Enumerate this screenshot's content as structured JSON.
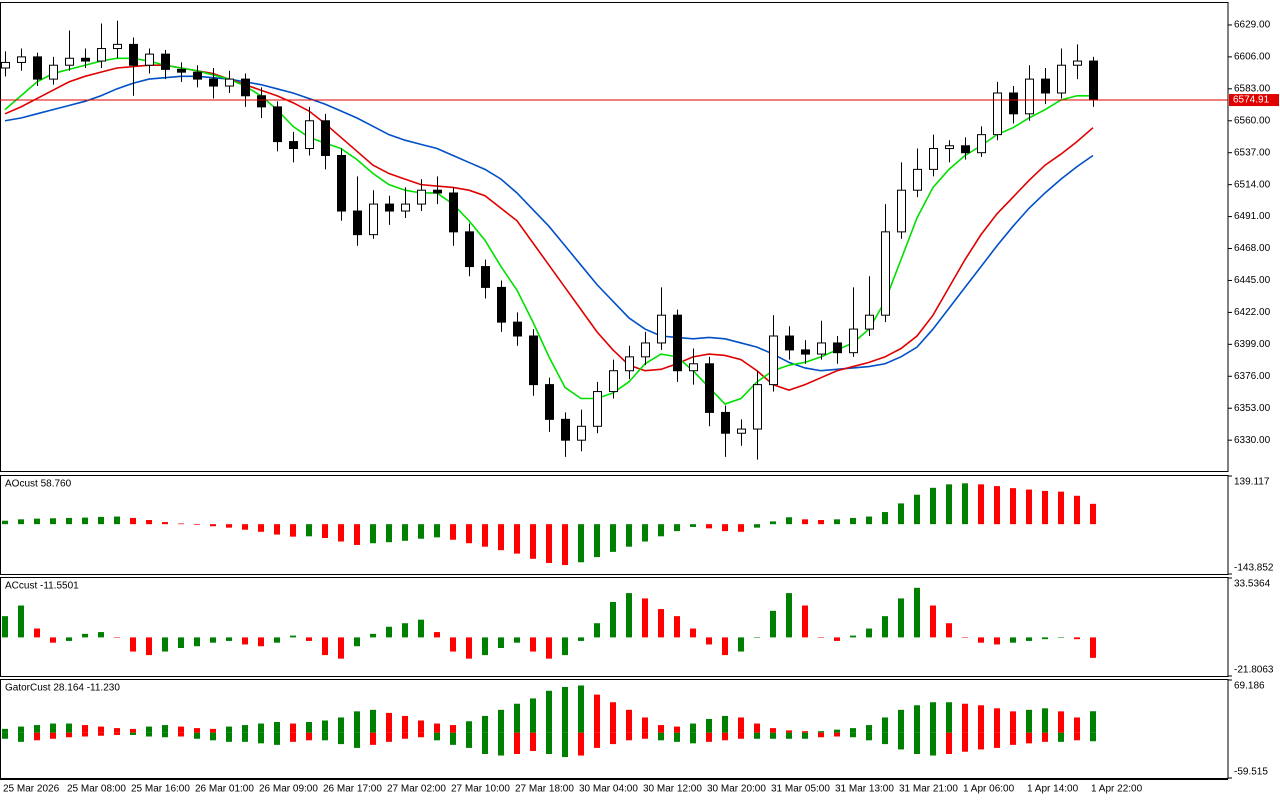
{
  "chart_data": [
    {
      "type": "candlestick",
      "categories": [
        "25 Mar 2026",
        null,
        null,
        null,
        "25 Mar 08:00",
        null,
        null,
        null,
        "25 Mar 16:00",
        null,
        null,
        null,
        "26 Mar 01:00",
        null,
        null,
        null,
        "26 Mar 09:00",
        null,
        null,
        null,
        "26 Mar 17:00",
        null,
        null,
        null,
        "27 Mar 02:00",
        null,
        null,
        null,
        "27 Mar 10:00",
        null,
        null,
        null,
        "27 Mar 18:00",
        null,
        null,
        null,
        "30 Mar 04:00",
        null,
        null,
        null,
        "30 Mar 12:00",
        null,
        null,
        null,
        "30 Mar 20:00",
        null,
        null,
        null,
        "31 Mar 05:00",
        null,
        null,
        null,
        "31 Mar 13:00",
        null,
        null,
        null,
        "31 Mar 21:00",
        null,
        null,
        null,
        "1 Apr 06:00",
        null,
        null,
        null,
        "1 Apr 14:00",
        null,
        null,
        null,
        "1 Apr 22:00"
      ],
      "candles": [
        [
          6598,
          6610,
          6592,
          6602
        ],
        [
          6602,
          6612,
          6596,
          6606
        ],
        [
          6606,
          6609,
          6585,
          6590
        ],
        [
          6590,
          6606,
          6586,
          6600
        ],
        [
          6600,
          6625,
          6596,
          6605
        ],
        [
          6605,
          6612,
          6598,
          6603
        ],
        [
          6603,
          6630,
          6598,
          6612
        ],
        [
          6612,
          6632,
          6605,
          6615
        ],
        [
          6615,
          6620,
          6578,
          6600
        ],
        [
          6600,
          6612,
          6594,
          6608
        ],
        [
          6608,
          6611,
          6590,
          6597
        ],
        [
          6597,
          6602,
          6588,
          6595
        ],
        [
          6595,
          6600,
          6584,
          6590
        ],
        [
          6590,
          6598,
          6576,
          6585
        ],
        [
          6585,
          6596,
          6580,
          6590
        ],
        [
          6590,
          6594,
          6570,
          6578
        ],
        [
          6578,
          6584,
          6562,
          6570
        ],
        [
          6570,
          6574,
          6538,
          6545
        ],
        [
          6545,
          6552,
          6530,
          6540
        ],
        [
          6540,
          6570,
          6535,
          6560
        ],
        [
          6560,
          6565,
          6525,
          6535
        ],
        [
          6535,
          6540,
          6488,
          6495
        ],
        [
          6495,
          6520,
          6470,
          6478
        ],
        [
          6478,
          6510,
          6475,
          6500
        ],
        [
          6500,
          6506,
          6485,
          6495
        ],
        [
          6495,
          6512,
          6490,
          6500
        ],
        [
          6500,
          6518,
          6495,
          6510
        ],
        [
          6510,
          6520,
          6500,
          6508
        ],
        [
          6508,
          6512,
          6470,
          6480
        ],
        [
          6480,
          6486,
          6448,
          6455
        ],
        [
          6455,
          6460,
          6432,
          6440
        ],
        [
          6440,
          6445,
          6408,
          6415
        ],
        [
          6415,
          6422,
          6398,
          6405
        ],
        [
          6405,
          6410,
          6362,
          6370
        ],
        [
          6370,
          6375,
          6336,
          6345
        ],
        [
          6345,
          6350,
          6318,
          6330
        ],
        [
          6330,
          6352,
          6322,
          6340
        ],
        [
          6340,
          6372,
          6335,
          6365
        ],
        [
          6365,
          6388,
          6360,
          6380
        ],
        [
          6380,
          6398,
          6374,
          6390
        ],
        [
          6390,
          6408,
          6384,
          6400
        ],
        [
          6400,
          6440,
          6395,
          6420
        ],
        [
          6420,
          6424,
          6372,
          6380
        ],
        [
          6380,
          6396,
          6370,
          6385
        ],
        [
          6385,
          6390,
          6340,
          6350
        ],
        [
          6350,
          6355,
          6318,
          6335
        ],
        [
          6335,
          6345,
          6326,
          6338
        ],
        [
          6338,
          6380,
          6316,
          6370
        ],
        [
          6370,
          6420,
          6365,
          6405
        ],
        [
          6405,
          6412,
          6388,
          6395
        ],
        [
          6395,
          6402,
          6385,
          6392
        ],
        [
          6392,
          6416,
          6388,
          6400
        ],
        [
          6400,
          6405,
          6385,
          6393
        ],
        [
          6393,
          6440,
          6390,
          6410
        ],
        [
          6410,
          6448,
          6405,
          6420
        ],
        [
          6420,
          6500,
          6415,
          6480
        ],
        [
          6480,
          6530,
          6475,
          6510
        ],
        [
          6510,
          6540,
          6505,
          6525
        ],
        [
          6525,
          6550,
          6520,
          6540
        ],
        [
          6540,
          6546,
          6530,
          6542
        ],
        [
          6542,
          6548,
          6532,
          6537
        ],
        [
          6537,
          6556,
          6534,
          6550
        ],
        [
          6550,
          6588,
          6546,
          6580
        ],
        [
          6580,
          6585,
          6558,
          6565
        ],
        [
          6565,
          6600,
          6560,
          6590
        ],
        [
          6590,
          6598,
          6572,
          6580
        ],
        [
          6580,
          6612,
          6576,
          6600
        ],
        [
          6600,
          6615,
          6590,
          6603
        ],
        [
          6603,
          6606,
          6570,
          6575
        ]
      ],
      "up_color": "#ffffff",
      "down_color": "#000000",
      "series": [
        {
          "color": "#0050c8",
          "values": [
            6560,
            6562,
            6565,
            6568,
            6571,
            6574,
            6578,
            6583,
            6587,
            6590,
            6591,
            6592,
            6592,
            6591,
            6590,
            6588,
            6586,
            6583,
            6580,
            6576,
            6572,
            6567,
            6562,
            6556,
            6550,
            6546,
            6543,
            6540,
            6535,
            6530,
            6525,
            6518,
            6508,
            6496,
            6484,
            6470,
            6456,
            6442,
            6430,
            6418,
            6410,
            6405,
            6404,
            6403,
            6404,
            6403,
            6400,
            6397,
            6392,
            6386,
            6382,
            6380,
            6381,
            6382,
            6383,
            6385,
            6390,
            6397,
            6410,
            6425,
            6440,
            6455,
            6470,
            6484,
            6497,
            6508,
            6518,
            6527,
            6535
          ]
        },
        {
          "color": "#e00000",
          "values": [
            6565,
            6570,
            6576,
            6582,
            6588,
            6592,
            6595,
            6598,
            6599,
            6600,
            6600,
            6598,
            6596,
            6594,
            6590,
            6586,
            6582,
            6578,
            6573,
            6567,
            6558,
            6548,
            6538,
            6528,
            6522,
            6518,
            6514,
            6513,
            6512,
            6510,
            6506,
            6497,
            6488,
            6472,
            6456,
            6440,
            6424,
            6408,
            6395,
            6384,
            6380,
            6381,
            6385,
            6390,
            6392,
            6391,
            6388,
            6380,
            6370,
            6366,
            6370,
            6375,
            6380,
            6383,
            6386,
            6390,
            6396,
            6405,
            6420,
            6440,
            6460,
            6478,
            6493,
            6505,
            6517,
            6528,
            6536,
            6545,
            6555
          ]
        },
        {
          "color": "#00e000",
          "values": [
            6568,
            6578,
            6588,
            6594,
            6597,
            6600,
            6603,
            6605,
            6605,
            6603,
            6600,
            6598,
            6596,
            6593,
            6590,
            6585,
            6578,
            6568,
            6556,
            6548,
            6544,
            6540,
            6532,
            6522,
            6514,
            6510,
            6508,
            6508,
            6500,
            6488,
            6474,
            6455,
            6438,
            6415,
            6390,
            6368,
            6360,
            6360,
            6364,
            6372,
            6385,
            6392,
            6390,
            6380,
            6368,
            6356,
            6360,
            6372,
            6380,
            6384,
            6386,
            6390,
            6395,
            6400,
            6410,
            6430,
            6460,
            6490,
            6512,
            6525,
            6535,
            6542,
            6550,
            6555,
            6562,
            6568,
            6575,
            6578,
            6578
          ]
        }
      ],
      "last_price": 6574.91,
      "price_line_color": "#e00000",
      "ylim": [
        6307.8,
        6644.8
      ],
      "yticks": [
        {
          "value": 6629,
          "label": "6629.00"
        },
        {
          "value": 6606,
          "label": "6606.00"
        },
        {
          "value": 6583,
          "label": "6583.00"
        },
        {
          "value": 6560,
          "label": "6560.00"
        },
        {
          "value": 6537,
          "label": "6537.00"
        },
        {
          "value": 6514,
          "label": "6514.00"
        },
        {
          "value": 6491,
          "label": "6491.00"
        },
        {
          "value": 6468,
          "label": "6468.00"
        },
        {
          "value": 6445,
          "label": "6445.00"
        },
        {
          "value": 6422,
          "label": "6422.00"
        },
        {
          "value": 6399,
          "label": "6399.00"
        },
        {
          "value": 6376,
          "label": "6376.00"
        },
        {
          "value": 6353,
          "label": "6353.00"
        },
        {
          "value": 6330,
          "label": "6330.00"
        }
      ]
    },
    {
      "type": "histogram",
      "title": "AOcust 58.760",
      "up_color": "#008000",
      "down_color": "#ff0000",
      "values": [
        10,
        14,
        16,
        17,
        18,
        19,
        21,
        22,
        18,
        12,
        6,
        2,
        -2,
        -6,
        -10,
        -16,
        -22,
        -30,
        -36,
        -35,
        -40,
        -50,
        -60,
        -55,
        -52,
        -48,
        -42,
        -38,
        -45,
        -55,
        -65,
        -75,
        -85,
        -100,
        -112,
        -118,
        -110,
        -95,
        -80,
        -65,
        -50,
        -35,
        -20,
        -8,
        -12,
        -20,
        -22,
        -10,
        8,
        20,
        14,
        12,
        14,
        18,
        22,
        35,
        60,
        85,
        105,
        115,
        118,
        115,
        110,
        104,
        100,
        96,
        94,
        82,
        58.76
      ],
      "ylim": [
        -143.852,
        139.117
      ],
      "yticks": [
        -143.852,
        139.117
      ]
    },
    {
      "type": "histogram",
      "title": "ACcust -11.5501",
      "up_color": "#008000",
      "down_color": "#ff0000",
      "values": [
        12,
        18,
        5,
        -3,
        -2,
        2,
        3,
        0,
        -8,
        -10,
        -8,
        -6,
        -5,
        -3,
        -2,
        -4,
        -5,
        -3,
        1,
        -2,
        -10,
        -12,
        -5,
        2,
        6,
        8,
        10,
        3,
        -8,
        -12,
        -10,
        -6,
        -3,
        -8,
        -12,
        -10,
        -2,
        8,
        20,
        25,
        22,
        16,
        12,
        5,
        -4,
        -10,
        -8,
        0,
        15,
        25,
        18,
        0,
        -2,
        1,
        5,
        12,
        22,
        28,
        18,
        8,
        0,
        -3,
        -4,
        -3,
        -2,
        -1,
        0,
        -1,
        -11.5501
      ],
      "ylim": [
        -21.8063,
        33.5364
      ],
      "yticks": [
        -21.8063,
        33.5364
      ]
    },
    {
      "type": "gator",
      "title": "GatorCust 28.164 -11.230",
      "up_color": "#008000",
      "down_color": "#ff0000",
      "upper": [
        5,
        8,
        10,
        12,
        12,
        10,
        8,
        6,
        5,
        8,
        10,
        8,
        6,
        5,
        8,
        10,
        12,
        14,
        12,
        14,
        16,
        20,
        28,
        30,
        26,
        22,
        16,
        12,
        10,
        15,
        22,
        30,
        38,
        45,
        55,
        60,
        62,
        50,
        40,
        30,
        20,
        10,
        8,
        12,
        18,
        22,
        20,
        12,
        6,
        3,
        2,
        2,
        4,
        6,
        10,
        20,
        30,
        36,
        40,
        40,
        38,
        36,
        32,
        28,
        30,
        32,
        28,
        20,
        28.164
      ],
      "lower": [
        -8,
        -12,
        -10,
        -8,
        -6,
        -5,
        -4,
        -3,
        -3,
        -5,
        -6,
        -5,
        -8,
        -10,
        -12,
        -12,
        -14,
        -16,
        -12,
        -10,
        -10,
        -15,
        -20,
        -16,
        -12,
        -8,
        -6,
        -10,
        -16,
        -20,
        -28,
        -30,
        -28,
        -24,
        -28,
        -32,
        -30,
        -20,
        -15,
        -10,
        -8,
        -10,
        -12,
        -14,
        -12,
        -10,
        -8,
        -8,
        -8,
        -8,
        -8,
        -6,
        -5,
        -6,
        -10,
        -15,
        -22,
        -28,
        -30,
        -28,
        -25,
        -22,
        -20,
        -16,
        -14,
        -12,
        -12,
        -10,
        -11.23
      ],
      "ylim": [
        -59.515,
        69.186
      ],
      "yticks": [
        -59.515,
        69.186
      ]
    }
  ]
}
